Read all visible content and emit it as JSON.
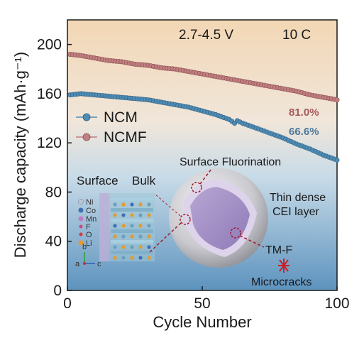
{
  "conditions": {
    "voltage": "2.7-4.5 V",
    "rate": "10 C"
  },
  "retention": {
    "ncmf": "81.0%",
    "ncm": "66.6%"
  },
  "inset": {
    "surface_label": "Surface",
    "bulk_label": "Bulk",
    "elements": [
      "Ni",
      "Co",
      "Mn",
      "F",
      "O",
      "Li"
    ],
    "axes": [
      "b",
      "a",
      "c"
    ],
    "labels": {
      "fluorination": "Surface Fluorination",
      "cei_line1": "Thin dense",
      "cei_line2": "CEI layer",
      "tmf": "TM-F",
      "microcracks": "Microcracks"
    }
  },
  "colors": {
    "ncm": "#4f8cb5",
    "ncmf": "#c07f80",
    "bg_top": "#f3d7b5",
    "bg_bottom": "#5d93be"
  },
  "chart_data": {
    "type": "line",
    "xlabel": "Cycle Number",
    "ylabel": "Discharge capacity (mAh·g⁻¹)",
    "xlim": [
      0,
      100
    ],
    "ylim": [
      0,
      220
    ],
    "xticks": [
      0,
      50,
      100
    ],
    "yticks": [
      0,
      40,
      80,
      120,
      160,
      200
    ],
    "legend_position": "middle-left",
    "series": [
      {
        "name": "NCM",
        "x": [
          1,
          5,
          10,
          15,
          20,
          25,
          30,
          35,
          40,
          45,
          50,
          55,
          60,
          62,
          63,
          65,
          70,
          75,
          80,
          85,
          90,
          95,
          100
        ],
        "y": [
          159,
          160,
          159,
          158,
          157,
          156,
          155,
          153,
          151,
          149,
          146,
          143,
          139,
          136,
          138,
          136,
          132,
          128,
          124,
          119,
          115,
          110,
          106
        ]
      },
      {
        "name": "NCMF",
        "x": [
          1,
          5,
          10,
          15,
          20,
          25,
          30,
          35,
          40,
          45,
          50,
          55,
          60,
          65,
          70,
          75,
          80,
          85,
          90,
          95,
          100
        ],
        "y": [
          192,
          191,
          189,
          187,
          186,
          184,
          183,
          181,
          180,
          178,
          176,
          174,
          172,
          170,
          168,
          166,
          164,
          162,
          159,
          157,
          155
        ]
      }
    ]
  }
}
